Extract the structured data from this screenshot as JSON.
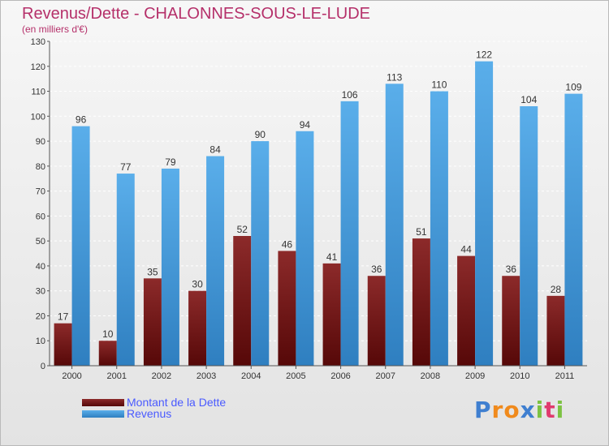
{
  "title": "Revenus/Dette - CHALONNES-SOUS-LE-LUDE",
  "subtitle": "(en milliers d'€)",
  "colors": {
    "title": "#b5306a",
    "dette": "#7a1a1a",
    "revenus": "#4a9fe0",
    "legend_text": "#4a5aff"
  },
  "legend": {
    "dette_label": "Montant de la Dette",
    "revenus_label": "Revenus"
  },
  "logo": {
    "letters": [
      "P",
      "r",
      "o",
      "x",
      "i",
      "t",
      "i"
    ],
    "colors": [
      "#3f7fd0",
      "#f08a1c",
      "#f08a1c",
      "#3f7fd0",
      "#7cc242",
      "#e03a6e",
      "#7cc242"
    ]
  },
  "chart_data": {
    "type": "bar",
    "categories": [
      "2000",
      "2001",
      "2002",
      "2003",
      "2004",
      "2005",
      "2006",
      "2007",
      "2008",
      "2009",
      "2010",
      "2011"
    ],
    "series": [
      {
        "name": "Montant de la Dette",
        "values": [
          17,
          10,
          35,
          30,
          52,
          46,
          41,
          36,
          51,
          44,
          36,
          28
        ]
      },
      {
        "name": "Revenus",
        "values": [
          96,
          77,
          79,
          84,
          90,
          94,
          106,
          113,
          110,
          122,
          104,
          109
        ]
      }
    ],
    "ylim": [
      0,
      130
    ],
    "yticks": [
      0,
      10,
      20,
      30,
      40,
      50,
      60,
      70,
      80,
      90,
      100,
      110,
      120,
      130
    ],
    "grid": true,
    "legend_position": "bottom-left"
  }
}
